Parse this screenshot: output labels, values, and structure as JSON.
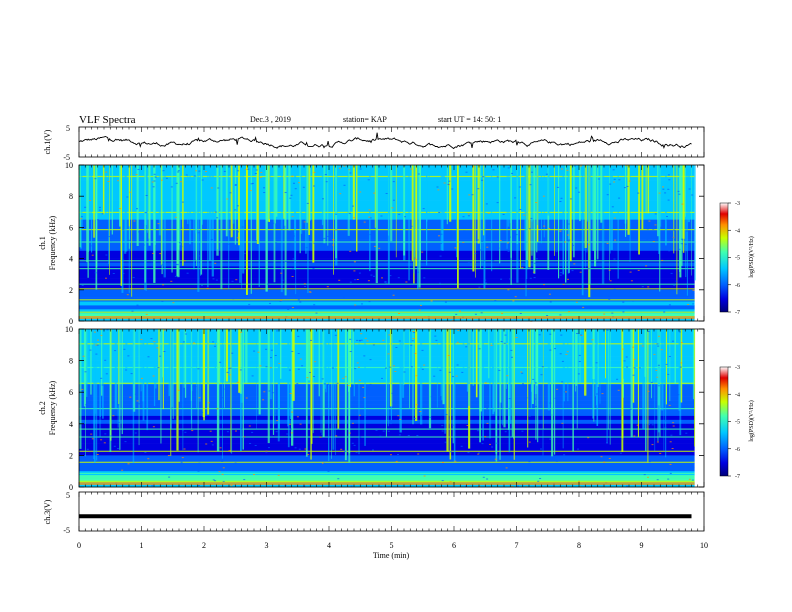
{
  "header": {
    "title": "VLF Spectra",
    "date": "Dec.3  , 2019",
    "station": "station= KAP",
    "start": "start  UT  =   14: 50: 1"
  },
  "colors": {
    "colormap": [
      "#00007a",
      "#0000e0",
      "#0060ff",
      "#00c8ff",
      "#40ffb0",
      "#c8ff00",
      "#ff9000",
      "#e00000",
      "#ffffff"
    ]
  },
  "chart_data": [
    {
      "type": "line",
      "name": "ch1-waveform",
      "ylabel": "ch.1(V)",
      "ylim": [
        -5,
        5
      ],
      "yticks": [
        "5",
        "-5"
      ],
      "xlim": [
        0,
        10
      ]
    },
    {
      "type": "heatmap",
      "name": "ch1-spectrogram",
      "ylabel": "ch.1\nFrequency  (kHz)",
      "ylim": [
        0,
        10
      ],
      "yticks": [
        "0",
        "2",
        "4",
        "6",
        "8",
        "10"
      ],
      "xlim": [
        0,
        10
      ],
      "colorbar": {
        "label": "log(PSD)(V²/Hz)",
        "range": [
          -7,
          -3
        ],
        "ticks": [
          "-3",
          "-4",
          "-5",
          "-6",
          "-7"
        ]
      }
    },
    {
      "type": "heatmap",
      "name": "ch2-spectrogram",
      "ylabel": "ch.2\nFrequency  (kHz)",
      "ylim": [
        0,
        10
      ],
      "yticks": [
        "0",
        "2",
        "4",
        "6",
        "8",
        "10"
      ],
      "xlim": [
        0,
        10
      ],
      "colorbar": {
        "label": "log(PSD)(V²/Hz)",
        "range": [
          -7,
          -3
        ],
        "ticks": [
          "-3",
          "-4",
          "-5",
          "-6",
          "-7"
        ]
      }
    },
    {
      "type": "line",
      "name": "ch3-waveform",
      "ylabel": "ch.3(V)",
      "ylim": [
        -5,
        5
      ],
      "yticks": [
        "5",
        "-5"
      ],
      "xlim": [
        0,
        10
      ],
      "x": [
        0,
        9.8
      ],
      "y": [
        -1.2,
        -1.2
      ]
    }
  ],
  "xaxis": {
    "label": "Time  (min)",
    "ticks": [
      "0",
      "1",
      "2",
      "3",
      "4",
      "5",
      "6",
      "7",
      "8",
      "9",
      "10"
    ]
  }
}
